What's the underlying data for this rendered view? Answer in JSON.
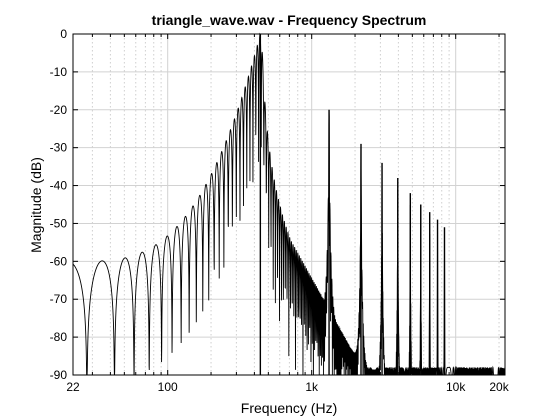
{
  "chart_data": {
    "type": "line",
    "title": "triangle_wave.wav - Frequency Spectrum",
    "xlabel": "Frequency (Hz)",
    "ylabel": "Magnitude (dB)",
    "xscale": "log",
    "xlim": [
      22,
      22000
    ],
    "ylim": [
      -90,
      0
    ],
    "xticks": [
      {
        "value": 22,
        "label": "22"
      },
      {
        "value": 100,
        "label": "100"
      },
      {
        "value": 1000,
        "label": "1k"
      },
      {
        "value": 10000,
        "label": "10k"
      },
      {
        "value": 20000,
        "label": "20k"
      }
    ],
    "yticks": [
      {
        "value": 0,
        "label": "0"
      },
      {
        "value": -10,
        "label": "-10"
      },
      {
        "value": -20,
        "label": "-20"
      },
      {
        "value": -30,
        "label": "-30"
      },
      {
        "value": -40,
        "label": "-40"
      },
      {
        "value": -50,
        "label": "-50"
      },
      {
        "value": -60,
        "label": "-60"
      },
      {
        "value": -70,
        "label": "-70"
      },
      {
        "value": -80,
        "label": "-80"
      },
      {
        "value": -90,
        "label": "-90"
      }
    ],
    "grid": true,
    "line_color": "#000000",
    "series": [
      {
        "harmonics": [
          {
            "frequency": 440,
            "magnitude": 0
          },
          {
            "frequency": 1320,
            "magnitude": -20
          },
          {
            "frequency": 2200,
            "magnitude": -29
          },
          {
            "frequency": 3080,
            "magnitude": -34
          },
          {
            "frequency": 3960,
            "magnitude": -38
          },
          {
            "frequency": 4840,
            "magnitude": -42
          },
          {
            "frequency": 5720,
            "magnitude": -45
          },
          {
            "frequency": 6600,
            "magnitude": -47
          },
          {
            "frequency": 7480,
            "magnitude": -49
          },
          {
            "frequency": 8360,
            "magnitude": -51
          }
        ]
      }
    ]
  }
}
